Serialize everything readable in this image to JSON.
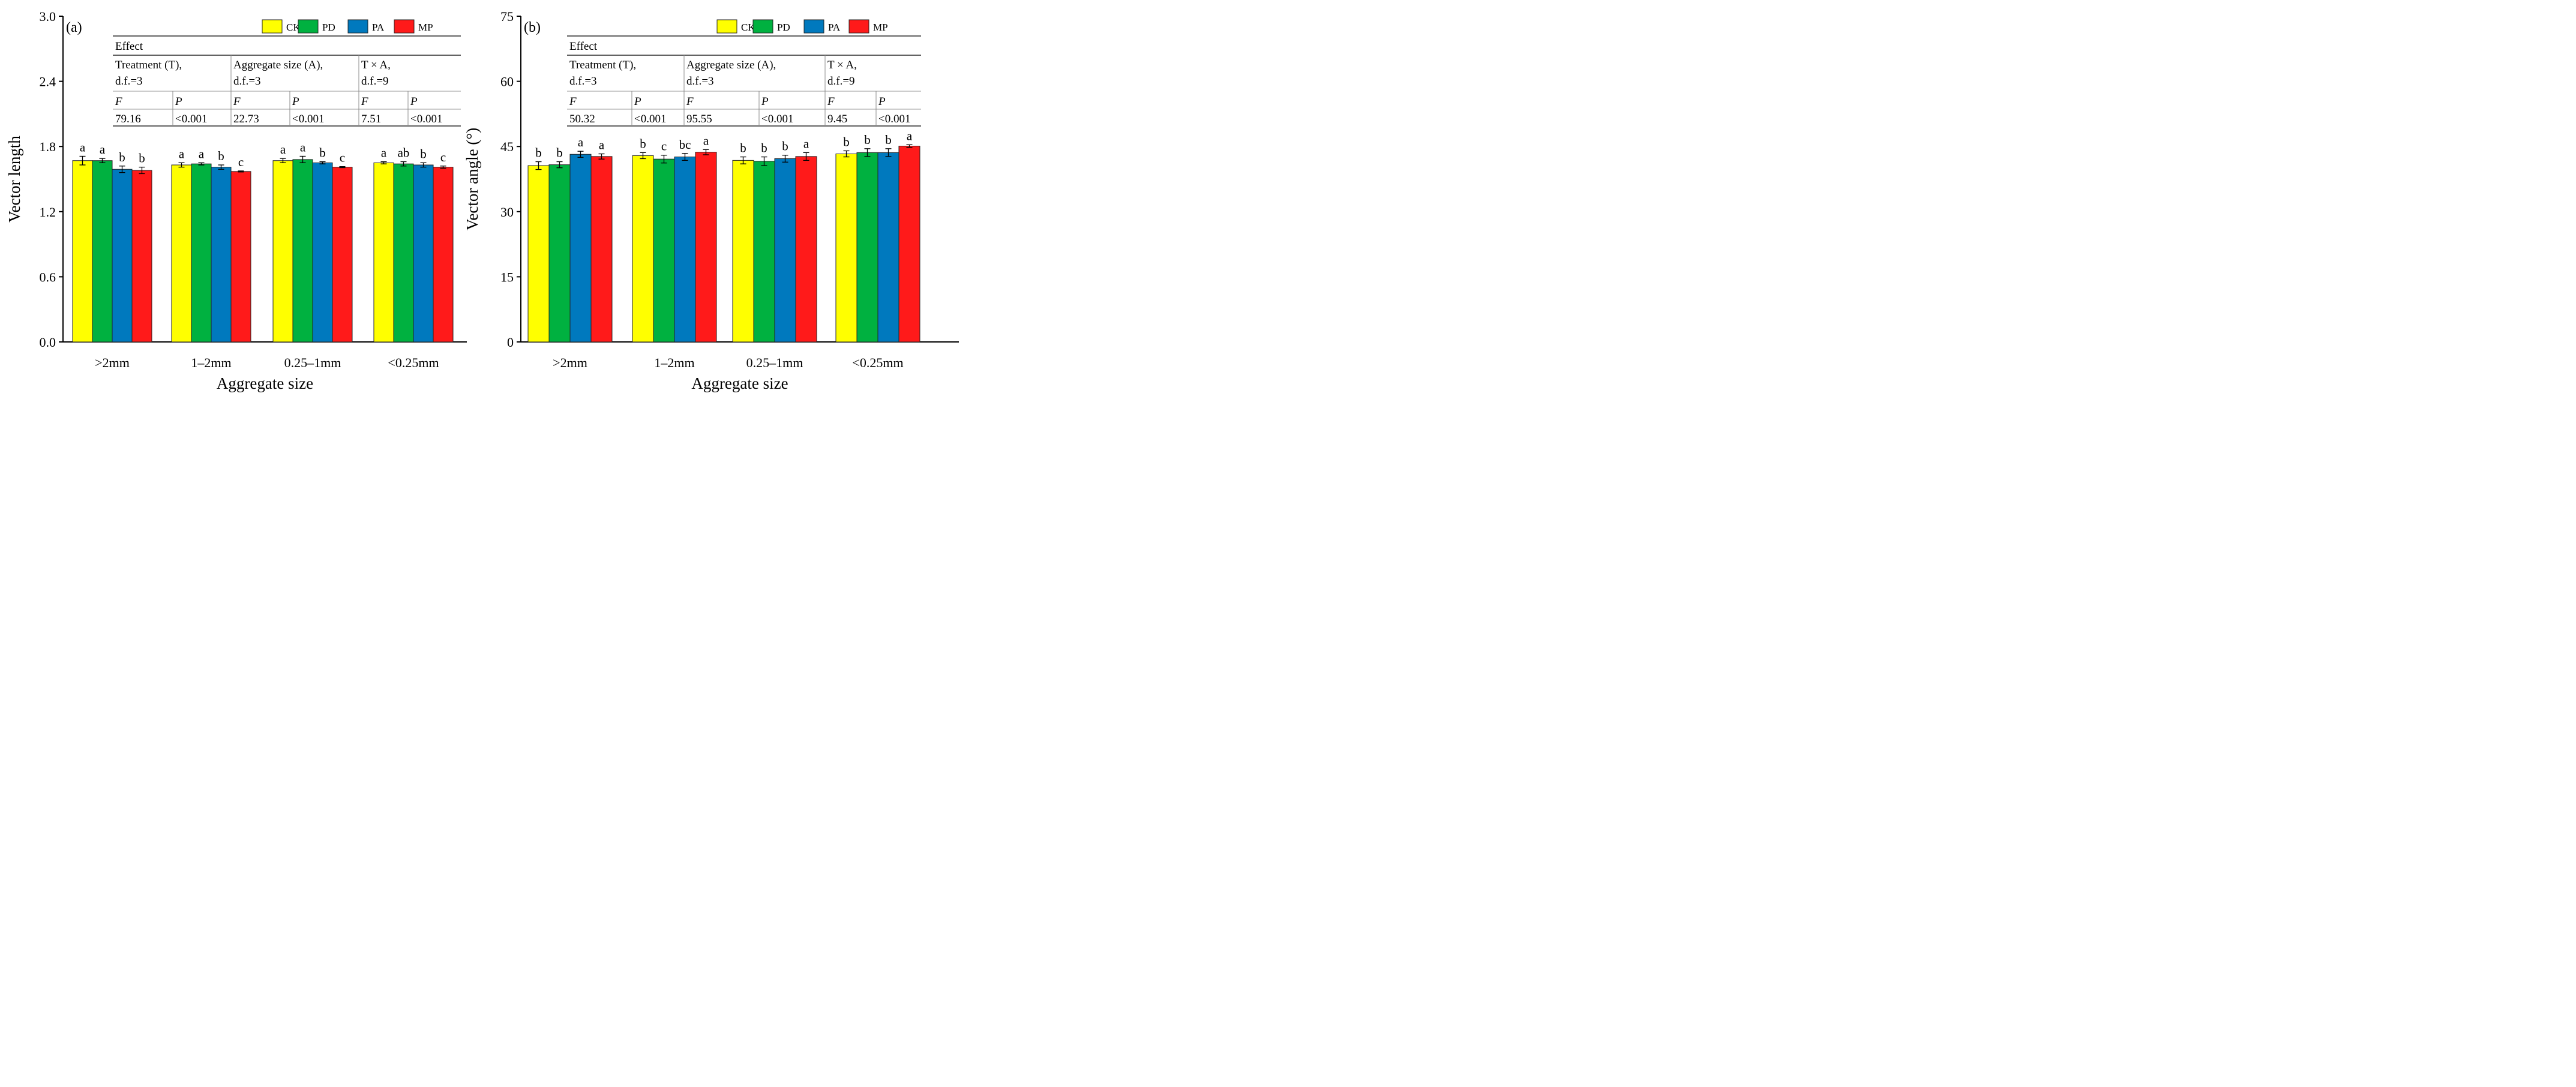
{
  "colors": {
    "CK": "#FFFF00",
    "PD": "#00B140",
    "PA": "#0079BE",
    "MP": "#FF1A1A"
  },
  "chart_data": [
    {
      "type": "bar",
      "panel_label": "(a)",
      "xlabel": "Aggregate size",
      "ylabel": "Vector length",
      "ylim": [
        0,
        3.0
      ],
      "yticks": [
        "0.0",
        "0.6",
        "1.2",
        "1.8",
        "2.4",
        "3.0"
      ],
      "categories": [
        ">2mm",
        "1–2mm",
        "0.25–1mm",
        "<0.25mm"
      ],
      "legend": [
        "CK",
        "PD",
        "PA",
        "MP"
      ],
      "legend_placement": "top-right",
      "series": [
        {
          "name": "CK",
          "values": [
            1.67,
            1.63,
            1.67,
            1.65
          ],
          "errors": [
            0.04,
            0.02,
            0.02,
            0.01
          ],
          "letters": [
            "a",
            "a",
            "a",
            "a"
          ]
        },
        {
          "name": "PD",
          "values": [
            1.67,
            1.64,
            1.68,
            1.64
          ],
          "errors": [
            0.02,
            0.01,
            0.03,
            0.02
          ],
          "letters": [
            "a",
            "a",
            "a",
            "ab"
          ]
        },
        {
          "name": "PA",
          "values": [
            1.59,
            1.61,
            1.65,
            1.63
          ],
          "errors": [
            0.03,
            0.02,
            0.01,
            0.02
          ],
          "letters": [
            "b",
            "b",
            "b",
            "b"
          ]
        },
        {
          "name": "MP",
          "values": [
            1.58,
            1.57,
            1.61,
            1.61
          ],
          "errors": [
            0.03,
            0.005,
            0.005,
            0.01
          ],
          "letters": [
            "b",
            "c",
            "c",
            "c"
          ]
        }
      ],
      "table": {
        "title": "Effect",
        "groups": [
          [
            "Treatment (T),",
            "d.f.=3"
          ],
          [
            "Aggregate size (A),",
            "d.f.=3"
          ],
          [
            "T × A,",
            "d.f.=9"
          ]
        ],
        "subheaders": [
          "F",
          "P",
          "F",
          "P",
          "F",
          "P"
        ],
        "values": [
          "79.16",
          "<0.001",
          "22.73",
          "<0.001",
          "7.51",
          "<0.001"
        ]
      }
    },
    {
      "type": "bar",
      "panel_label": "(b)",
      "xlabel": "Aggregate size",
      "ylabel": "Vector angle (°)",
      "ylim": [
        0,
        75
      ],
      "yticks": [
        "0",
        "15",
        "30",
        "45",
        "60",
        "75"
      ],
      "categories": [
        ">2mm",
        "1–2mm",
        "0.25–1mm",
        "<0.25mm"
      ],
      "legend": [
        "CK",
        "PD",
        "PA",
        "MP"
      ],
      "legend_placement": "top-right",
      "series": [
        {
          "name": "CK",
          "values": [
            40.6,
            42.9,
            41.8,
            43.3
          ],
          "errors": [
            0.9,
            0.7,
            0.8,
            0.7
          ],
          "letters": [
            "b",
            "b",
            "b",
            "b"
          ]
        },
        {
          "name": "PD",
          "values": [
            40.8,
            42.1,
            41.6,
            43.6
          ],
          "errors": [
            0.7,
            0.9,
            1.0,
            0.9
          ],
          "letters": [
            "b",
            "c",
            "b",
            "b"
          ]
        },
        {
          "name": "PA",
          "values": [
            43.2,
            42.6,
            42.2,
            43.6
          ],
          "errors": [
            0.7,
            0.8,
            0.8,
            0.9
          ],
          "letters": [
            "a",
            "bc",
            "b",
            "b"
          ]
        },
        {
          "name": "MP",
          "values": [
            42.7,
            43.7,
            42.7,
            45.1
          ],
          "errors": [
            0.6,
            0.6,
            0.9,
            0.3
          ],
          "letters": [
            "a",
            "a",
            "a",
            "a"
          ]
        }
      ],
      "table": {
        "title": "Effect",
        "groups": [
          [
            "Treatment (T),",
            "d.f.=3"
          ],
          [
            "Aggregate size (A),",
            "d.f.=3"
          ],
          [
            "T × A,",
            "d.f.=9"
          ]
        ],
        "subheaders": [
          "F",
          "P",
          "F",
          "P",
          "F",
          "P"
        ],
        "values": [
          "50.32",
          "<0.001",
          "95.55",
          "<0.001",
          "9.45",
          "<0.001"
        ]
      }
    }
  ]
}
